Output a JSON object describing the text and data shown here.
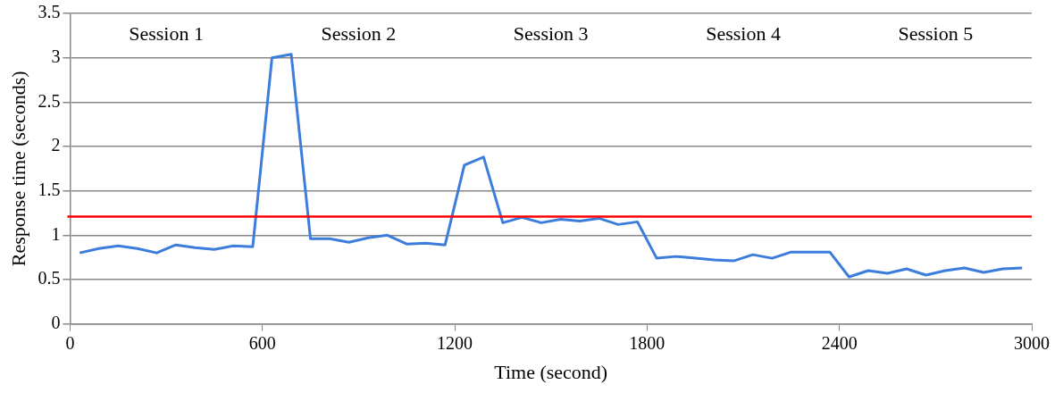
{
  "chart_data": {
    "type": "line",
    "xlabel": "Time (second)",
    "ylabel": "Response time (seconds)",
    "x": [
      30,
      90,
      150,
      210,
      270,
      330,
      390,
      450,
      510,
      570,
      630,
      690,
      750,
      810,
      870,
      930,
      990,
      1050,
      1110,
      1170,
      1230,
      1290,
      1350,
      1410,
      1470,
      1530,
      1590,
      1650,
      1710,
      1770,
      1830,
      1890,
      1950,
      2010,
      2070,
      2130,
      2190,
      2250,
      2310,
      2370,
      2430,
      2490,
      2550,
      2610,
      2670,
      2730,
      2790,
      2850,
      2910,
      2970
    ],
    "series": [
      {
        "color": "#3c7ddc",
        "values": [
          0.8,
          0.85,
          0.88,
          0.85,
          0.8,
          0.89,
          0.86,
          0.84,
          0.88,
          0.87,
          3.0,
          3.04,
          0.96,
          0.96,
          0.92,
          0.97,
          1.0,
          0.9,
          0.91,
          0.89,
          1.79,
          1.88,
          1.14,
          1.2,
          1.14,
          1.18,
          1.16,
          1.19,
          1.12,
          1.15,
          0.74,
          0.76,
          0.74,
          0.72,
          0.71,
          0.78,
          0.74,
          0.81,
          0.81,
          0.81,
          0.53,
          0.6,
          0.57,
          0.62,
          0.55,
          0.6,
          0.63,
          0.58,
          0.62,
          0.63
        ]
      }
    ],
    "xlim": [
      0,
      3000
    ],
    "xticks": [
      0,
      600,
      1200,
      1800,
      2400,
      3000
    ],
    "ylim": [
      0,
      3.5
    ],
    "yticks": [
      0,
      0.5,
      1,
      1.5,
      2,
      2.5,
      3,
      3.5
    ],
    "grid": "y",
    "legend": false,
    "marker": "none",
    "line_style": "solid",
    "ref_lines": [
      {
        "axis": "y",
        "value": 1.21,
        "color": "#ff0000"
      }
    ],
    "annotations": [
      "Session 1",
      "Session 2",
      "Session 3",
      "Session 4",
      "Session 5"
    ]
  }
}
